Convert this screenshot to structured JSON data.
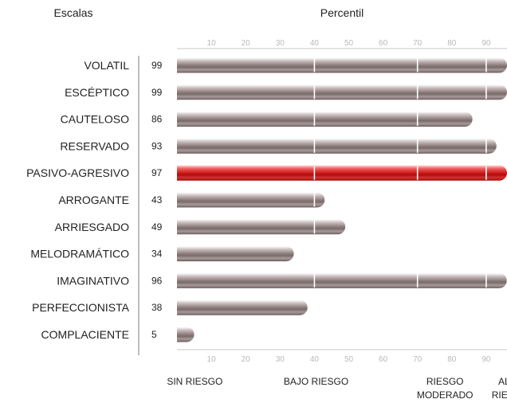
{
  "header": {
    "scales_label": "Escalas",
    "percentile_label": "Percentil"
  },
  "chart_data": {
    "type": "bar",
    "orientation": "horizontal",
    "categories": [
      "VOLATIL",
      "ESCÉPTICO",
      "CAUTELOSO",
      "RESERVADO",
      "PASIVO-AGRESIVO",
      "ARROGANTE",
      "ARRIESGADO",
      "MELODRAMÁTICO",
      "IMAGINATIVO",
      "PERFECCIONISTA",
      "COMPLACIENTE"
    ],
    "values": [
      99,
      99,
      86,
      93,
      97,
      43,
      49,
      34,
      96,
      38,
      5
    ],
    "value_labels": [
      "99",
      "99",
      "86",
      "93",
      "97",
      "43",
      "49",
      "34",
      "96",
      "38",
      "5"
    ],
    "highlight_index": 4,
    "xlim": [
      0,
      100
    ],
    "ticks": [
      10,
      20,
      30,
      40,
      50,
      60,
      70,
      80,
      90
    ],
    "tick_labels": [
      "10",
      "20",
      "30",
      "40",
      "50",
      "60",
      "70",
      "80",
      "90"
    ],
    "zone_boundaries": [
      40,
      70,
      90
    ],
    "zones": [
      {
        "lines": [
          "SIN RIESGO"
        ],
        "center": 7.5
      },
      {
        "lines": [
          "BAJO RIESGO"
        ],
        "center": 40.5
      },
      {
        "lines": [
          "RIESGO",
          "MODERADO"
        ],
        "center": 78
      },
      {
        "lines": [
          "ALTO",
          "RIESGO"
        ],
        "center": 97
      }
    ],
    "colors": {
      "bar": "#7d6e6e",
      "bar_highlight": "#c8101a",
      "tick_text": "#b9b9b9",
      "axis_line": "#bdbdbd"
    }
  }
}
